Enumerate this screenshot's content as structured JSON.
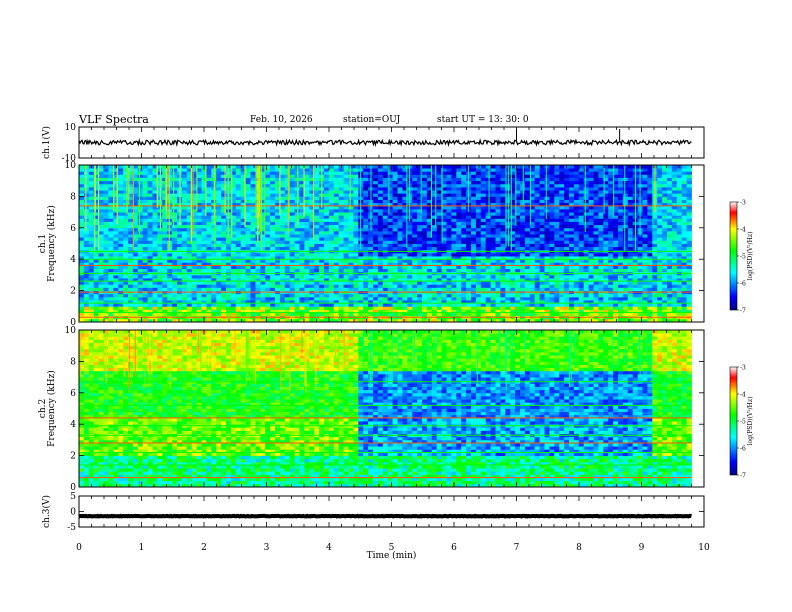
{
  "header": {
    "title": "VLF Spectra",
    "date": "Feb. 10, 2026",
    "station": "station=OUJ",
    "start_ut": "start  UT =   13: 30: 0"
  },
  "chart_data": {
    "type": "heatmap",
    "x_axis": {
      "label": "Time  (min)",
      "range": [
        0,
        10
      ],
      "ticks": [
        "0",
        "1",
        "2",
        "3",
        "4",
        "5",
        "6",
        "7",
        "8",
        "9",
        "10"
      ]
    },
    "panels": [
      {
        "name": "ch1-waveform",
        "type": "line",
        "ylabel": "ch.1(V)",
        "ylim": [
          -10,
          10
        ],
        "yticks": [
          "10",
          "-10"
        ],
        "baseline": 0,
        "data_end_min": 9.8,
        "spikes_min": [
          7.0,
          8.65
        ]
      },
      {
        "name": "ch1-spectrogram",
        "type": "heatmap",
        "ylabel": "ch.1\nFrequency  (kHz)",
        "ylim": [
          0,
          10
        ],
        "yticks": [
          "10",
          "8",
          "6",
          "4",
          "2",
          "0"
        ],
        "data_end_min": 9.8,
        "regime_change_min": [
          4.5,
          9.2
        ]
      },
      {
        "name": "ch2-spectrogram",
        "type": "heatmap",
        "ylabel": "ch.2\nFrequency  (kHz)",
        "ylim": [
          0,
          10
        ],
        "yticks": [
          "10",
          "8",
          "6",
          "4",
          "2",
          "0"
        ],
        "data_end_min": 9.8,
        "regime_change_min": [
          4.5,
          9.2
        ]
      },
      {
        "name": "ch3-waveform",
        "type": "line",
        "ylabel": "ch.3(V)",
        "ylim": [
          -5,
          5
        ],
        "yticks": [
          "5",
          "0",
          "-5"
        ],
        "baseline": -1.5,
        "data_end_min": 9.8
      }
    ],
    "colorbar": {
      "label": "log(PSD)(V²/Hz)",
      "range": [
        -7,
        -3
      ],
      "ticks": [
        "-3",
        "-4",
        "-5",
        "-6",
        "-7"
      ]
    }
  }
}
